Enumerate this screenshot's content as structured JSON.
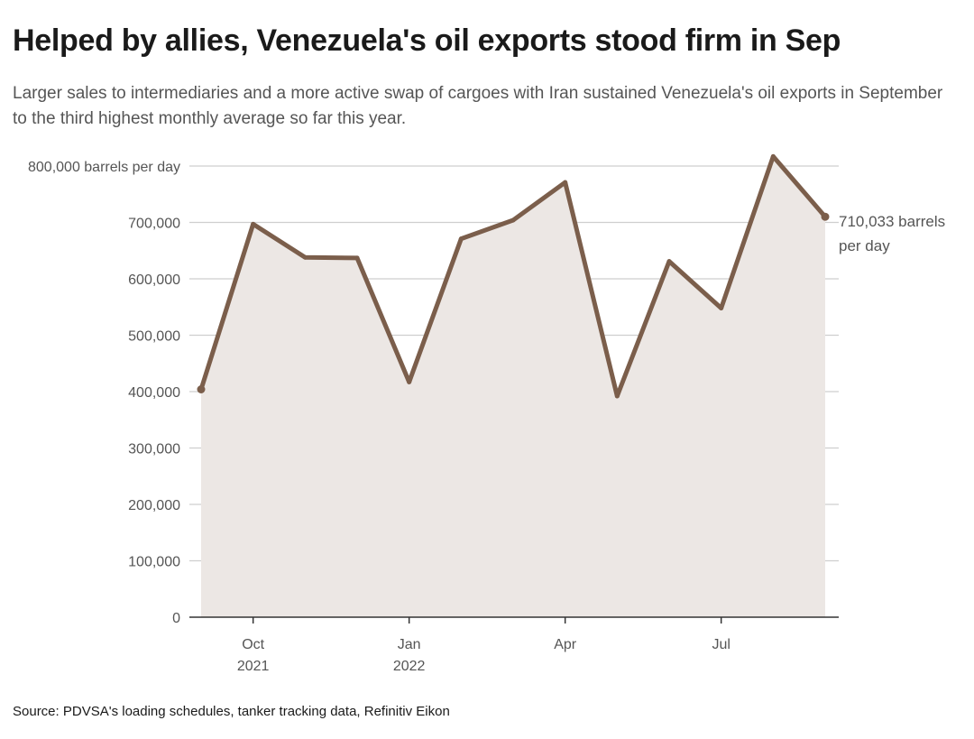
{
  "title": "Helped by allies, Venezuela's oil exports stood firm in Sep",
  "subtitle": "Larger sales to intermediaries and a more active swap of cargoes with Iran sustained Venezuela's oil exports in September to the third highest monthly average so far this year.",
  "source": "Source: PDVSA's loading schedules, tanker tracking data, Refinitiv Eikon",
  "colors": {
    "line": "#7b5e4b",
    "area": "#ece7e4",
    "grid": "#cfcfcf",
    "axis": "#333333"
  },
  "chart_data": {
    "type": "area",
    "x": [
      "2021-09",
      "2021-10",
      "2021-11",
      "2021-12",
      "2022-01",
      "2022-02",
      "2022-03",
      "2022-04",
      "2022-05",
      "2022-06",
      "2022-07",
      "2022-08",
      "2022-09"
    ],
    "values": [
      404000,
      697000,
      638000,
      637000,
      417000,
      671000,
      704000,
      771000,
      392000,
      631000,
      548000,
      817000,
      710033
    ],
    "ylim": [
      0,
      800000
    ],
    "yticks": [
      0,
      100000,
      200000,
      300000,
      400000,
      500000,
      600000,
      700000,
      800000
    ],
    "ytick_labels": [
      "0",
      "100,000",
      "200,000",
      "300,000",
      "400,000",
      "500,000",
      "600,000",
      "700,000",
      "800,000 barrels per day"
    ],
    "xticks": [
      {
        "index": 1,
        "line1": "Oct",
        "line2": "2021"
      },
      {
        "index": 4,
        "line1": "Jan",
        "line2": "2022"
      },
      {
        "index": 7,
        "line1": "Apr",
        "line2": ""
      },
      {
        "index": 10,
        "line1": "Jul",
        "line2": ""
      }
    ],
    "end_label": [
      "710,033 barrels",
      "per day"
    ],
    "grid": true
  }
}
